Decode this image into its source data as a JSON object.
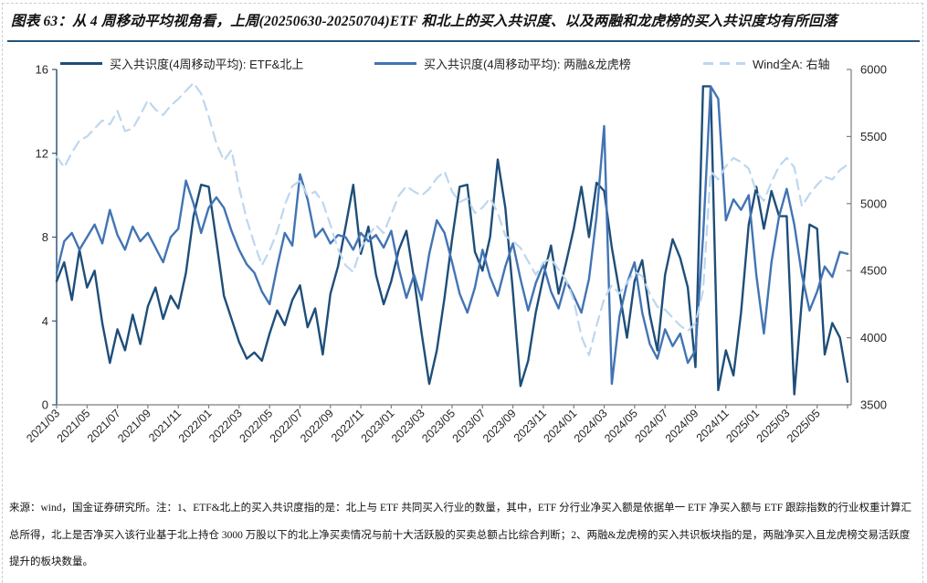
{
  "figure": {
    "title": "图表 63：从 4 周移动平均视角看，上周(20250630-20250704)ETF 和北上的买入共识度、以及两融和龙虎榜的买入共识度均有所回落"
  },
  "footer": {
    "source_note": "来源：wind，国金证券研究所。注：1、ETF&北上的买入共识度指的是：北上与 ETF 共同买入行业的数量，其中，ETF 分行业净买入额是依据单一 ETF 净买入额与 ETF 跟踪指数的行业权重计算汇总所得，北上是否净买入该行业基于北上持仓 3000 万股以下的北上净买卖情况与前十大活跃股的买卖总额占比综合判断；2、两融&龙虎榜的买入共识板块指的是，两融净买入且龙虎榜交易活跃度提升的板块数量。"
  },
  "chart_data": {
    "type": "line",
    "legend_position": "top",
    "grid": false,
    "left_axis": {
      "min": 0,
      "max": 16,
      "ticks": [
        0,
        4,
        8,
        12,
        16
      ]
    },
    "right_axis": {
      "min": 3500,
      "max": 6000,
      "ticks": [
        3500,
        4000,
        4500,
        5000,
        5500,
        6000
      ]
    },
    "x_tick_labels": [
      "2021/03",
      "2021/05",
      "2021/07",
      "2021/09",
      "2021/11",
      "2022/01",
      "2022/03",
      "2022/05",
      "2022/07",
      "2022/09",
      "2022/11",
      "2023/01",
      "2023/03",
      "2023/05",
      "2023/07",
      "2023/09",
      "2023/11",
      "2024/01",
      "2024/03",
      "2024/05",
      "2024/07",
      "2024/09",
      "2024/11",
      "2025/01",
      "2025/03",
      "2025/05"
    ],
    "x_period": "weekly 4-week moving average, two samples per month, 2021/03 - 2025/07",
    "series": [
      {
        "name": "买入共识度(4周移动平均): ETF&北上",
        "axis": "left",
        "color": "#1E4E79",
        "dash": null,
        "width": 2.4,
        "values": [
          5.9,
          6.8,
          5.0,
          7.4,
          5.6,
          6.4,
          3.9,
          2.0,
          3.6,
          2.6,
          4.3,
          2.9,
          4.7,
          5.6,
          4.1,
          5.2,
          4.6,
          6.3,
          9.0,
          10.5,
          10.4,
          7.8,
          5.2,
          4.1,
          3.0,
          2.2,
          2.5,
          2.1,
          3.4,
          4.5,
          3.8,
          5.0,
          5.7,
          3.7,
          4.6,
          2.4,
          5.3,
          6.6,
          8.5,
          10.5,
          7.2,
          8.5,
          6.2,
          4.8,
          5.9,
          7.4,
          8.3,
          6.0,
          3.4,
          1.0,
          2.6,
          5.1,
          7.9,
          10.4,
          10.5,
          7.3,
          6.4,
          8.0,
          11.7,
          9.4,
          5.4,
          0.9,
          2.1,
          4.4,
          6.1,
          7.6,
          5.3,
          6.8,
          8.4,
          10.4,
          8.0,
          10.6,
          10.2,
          7.5,
          5.4,
          3.2,
          5.9,
          6.9,
          4.3,
          2.6,
          6.2,
          7.9,
          7.0,
          5.6,
          1.8,
          15.2,
          15.2,
          0.7,
          2.6,
          1.4,
          4.4,
          8.6,
          10.4,
          8.4,
          10.2,
          9.0,
          9.0,
          0.5,
          5.0,
          8.6,
          8.4,
          2.4,
          3.9,
          3.2,
          1.1
        ]
      },
      {
        "name": "买入共识度(4周移动平均): 两融&龙虎榜",
        "axis": "left",
        "color": "#4274B4",
        "dash": null,
        "width": 2.4,
        "values": [
          6.3,
          7.8,
          8.2,
          7.4,
          8.0,
          8.6,
          7.7,
          9.3,
          8.1,
          7.4,
          8.5,
          7.8,
          8.2,
          7.5,
          6.8,
          8.0,
          8.4,
          10.7,
          9.6,
          8.2,
          9.4,
          9.9,
          9.4,
          8.3,
          7.4,
          6.7,
          6.3,
          5.4,
          4.8,
          6.6,
          8.2,
          7.6,
          11.0,
          9.8,
          8.0,
          8.4,
          7.7,
          8.1,
          8.0,
          7.4,
          8.2,
          7.8,
          8.1,
          7.5,
          8.3,
          6.5,
          5.1,
          6.2,
          5.0,
          7.2,
          8.8,
          8.2,
          6.8,
          5.3,
          4.4,
          5.6,
          7.4,
          6.1,
          5.2,
          6.6,
          7.7,
          6.0,
          4.5,
          5.8,
          6.7,
          5.4,
          4.6,
          5.9,
          5.2,
          4.4,
          6.0,
          9.0,
          13.3,
          1.0,
          4.2,
          5.8,
          6.8,
          4.4,
          2.9,
          2.2,
          3.6,
          2.8,
          3.4,
          2.0,
          2.6,
          8.0,
          15.2,
          14.6,
          8.8,
          9.8,
          9.3,
          10.0,
          6.2,
          3.4,
          6.8,
          9.0,
          10.3,
          8.6,
          6.2,
          4.5,
          5.4,
          6.6,
          6.1,
          7.3,
          7.2
        ]
      },
      {
        "name": "Wind全A: 右轴",
        "axis": "right",
        "color": "#BDD7EE",
        "dash": "11 7",
        "width": 2.2,
        "values": [
          5350,
          5270,
          5380,
          5470,
          5500,
          5560,
          5620,
          5590,
          5690,
          5540,
          5560,
          5660,
          5770,
          5700,
          5660,
          5730,
          5780,
          5840,
          5900,
          5820,
          5650,
          5450,
          5320,
          5400,
          5120,
          4880,
          4700,
          4540,
          4650,
          4790,
          4990,
          5130,
          5170,
          5060,
          5090,
          5010,
          4840,
          4660,
          4540,
          4490,
          4670,
          4760,
          4840,
          4780,
          4920,
          5060,
          5130,
          5090,
          5060,
          5110,
          5190,
          5240,
          5090,
          5010,
          5040,
          4930,
          4970,
          5040,
          4930,
          4760,
          4720,
          4670,
          4570,
          4470,
          4560,
          4590,
          4510,
          4430,
          4280,
          4010,
          3870,
          4090,
          4290,
          4390,
          4330,
          4410,
          4490,
          4460,
          4330,
          4230,
          4210,
          4150,
          4090,
          4050,
          4110,
          4350,
          5240,
          5180,
          5280,
          5340,
          5310,
          5260,
          5090,
          5020,
          5160,
          5280,
          5340,
          5270,
          4980,
          5070,
          5140,
          5200,
          5180,
          5250,
          5290
        ]
      }
    ]
  }
}
